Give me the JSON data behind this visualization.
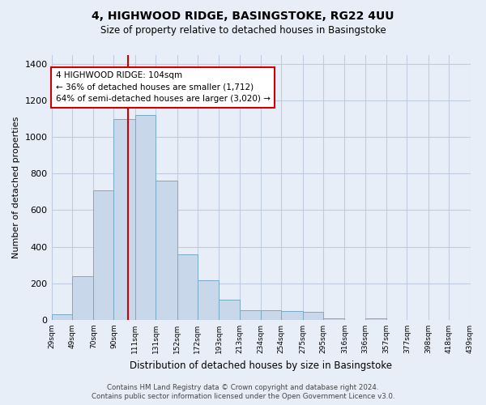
{
  "title": "4, HIGHWOOD RIDGE, BASINGSTOKE, RG22 4UU",
  "subtitle": "Size of property relative to detached houses in Basingstoke",
  "xlabel": "Distribution of detached houses by size in Basingstoke",
  "ylabel": "Number of detached properties",
  "footer_line1": "Contains HM Land Registry data © Crown copyright and database right 2024.",
  "footer_line2": "Contains public sector information licensed under the Open Government Licence v3.0.",
  "bar_lefts": [
    29,
    49,
    70,
    90,
    111,
    131,
    152,
    172,
    193,
    213,
    234,
    254,
    275,
    295,
    316,
    336,
    357,
    377,
    398,
    418
  ],
  "bar_rights": [
    49,
    70,
    90,
    111,
    131,
    152,
    172,
    193,
    213,
    234,
    254,
    275,
    295,
    316,
    336,
    357,
    377,
    398,
    418,
    439
  ],
  "bar_heights": [
    30,
    240,
    710,
    1100,
    1120,
    760,
    360,
    215,
    110,
    55,
    55,
    50,
    45,
    10,
    0,
    10,
    0,
    0,
    0,
    0
  ],
  "bar_color": "#c8d8ea",
  "bar_edge_color": "#7aaac8",
  "grid_color": "#c0cce0",
  "bg_color": "#e8eef8",
  "property_line_x": 104,
  "property_line_color": "#cc0000",
  "annotation_text": "4 HIGHWOOD RIDGE: 104sqm\n← 36% of detached houses are smaller (1,712)\n64% of semi-detached houses are larger (3,020) →",
  "annotation_box_facecolor": "#ffffff",
  "annotation_box_edgecolor": "#cc0000",
  "ylim": [
    0,
    1450
  ],
  "yticks": [
    0,
    200,
    400,
    600,
    800,
    1000,
    1200,
    1400
  ],
  "xtick_labels": [
    "29sqm",
    "49sqm",
    "70sqm",
    "90sqm",
    "111sqm",
    "131sqm",
    "152sqm",
    "172sqm",
    "193sqm",
    "213sqm",
    "234sqm",
    "254sqm",
    "275sqm",
    "295sqm",
    "316sqm",
    "336sqm",
    "357sqm",
    "377sqm",
    "398sqm",
    "418sqm",
    "439sqm"
  ],
  "xlim_left": 29,
  "xlim_right": 439
}
